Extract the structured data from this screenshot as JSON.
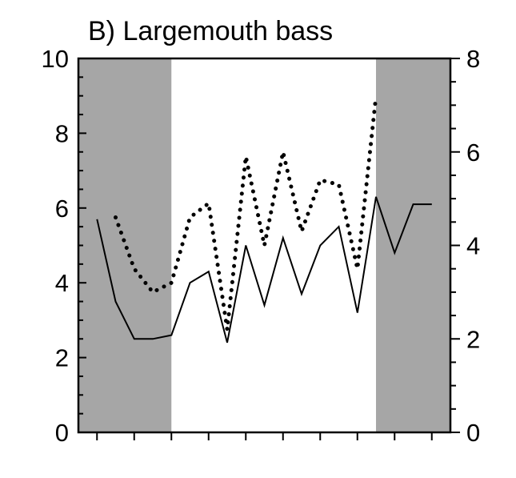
{
  "chart_data": {
    "type": "line",
    "title": "B) Largemouth bass",
    "xlabel": "",
    "ylabel": "",
    "y_left": {
      "range": [
        0,
        10
      ],
      "ticks": [
        0,
        2,
        4,
        6,
        8,
        10
      ],
      "tick_labels": [
        "0",
        "2",
        "4",
        "6",
        "8",
        "10"
      ]
    },
    "y_right": {
      "range": [
        0,
        8
      ],
      "ticks": [
        0,
        2,
        4,
        6,
        8
      ],
      "tick_labels": [
        "0",
        "2",
        "4",
        "6",
        "8"
      ]
    },
    "x": {
      "range": [
        0,
        20
      ],
      "major_ticks": [
        1,
        3,
        5,
        7,
        9,
        11,
        13,
        15,
        17,
        19
      ],
      "tick_labels": []
    },
    "shaded_regions": [
      {
        "x_start": 0,
        "x_end": 5,
        "color": "#a6a6a6"
      },
      {
        "x_start": 16,
        "x_end": 20,
        "color": "#a6a6a6"
      }
    ],
    "series": [
      {
        "axis": "left",
        "style": "solid",
        "color": "#000000",
        "points": [
          [
            1,
            5.7
          ],
          [
            2,
            3.5
          ],
          [
            3,
            2.5
          ],
          [
            4,
            2.5
          ],
          [
            5,
            2.6
          ],
          [
            6,
            4.0
          ],
          [
            7,
            4.3
          ],
          [
            8,
            2.4
          ],
          [
            9,
            5.0
          ],
          [
            10,
            3.4
          ],
          [
            11,
            5.2
          ],
          [
            12,
            3.7
          ],
          [
            13,
            5.0
          ],
          [
            14,
            5.5
          ],
          [
            15,
            3.2
          ],
          [
            16,
            6.3
          ],
          [
            17,
            4.8
          ],
          [
            18,
            6.1
          ],
          [
            19,
            6.1
          ]
        ]
      },
      {
        "axis": "right",
        "style": "dotted",
        "color": "#000000",
        "points": [
          [
            2,
            4.6
          ],
          [
            3,
            3.5
          ],
          [
            4,
            3.0
          ],
          [
            5,
            3.2
          ],
          [
            6,
            4.6
          ],
          [
            7,
            4.9
          ],
          [
            8,
            2.2
          ],
          [
            9,
            5.9
          ],
          [
            10,
            4.0
          ],
          [
            11,
            6.0
          ],
          [
            12,
            4.3
          ],
          [
            13,
            5.4
          ],
          [
            14,
            5.3
          ],
          [
            15,
            3.5
          ],
          [
            16,
            7.2
          ]
        ]
      }
    ]
  }
}
